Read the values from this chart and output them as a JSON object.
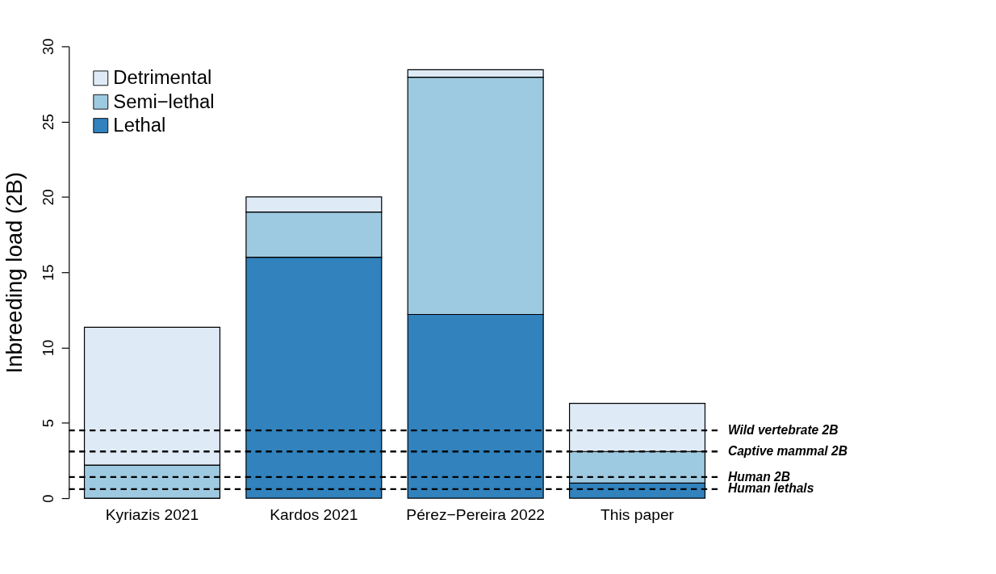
{
  "chart_data": {
    "type": "bar",
    "stacked": true,
    "ylabel": "Inbreeding load (2B)",
    "categories": [
      "Kyriazis 2021",
      "Kardos 2021",
      "Pérez−Pereira 2022",
      "This paper"
    ],
    "series": [
      {
        "name": "Lethal",
        "color": "#3182bd",
        "values": [
          0,
          16,
          12.2,
          1.0
        ]
      },
      {
        "name": "Semi−lethal",
        "color": "#9ecae1",
        "values": [
          2.2,
          3,
          15.75,
          2.1
        ]
      },
      {
        "name": "Detrimental",
        "color": "#deebf7",
        "values": [
          9.15,
          1,
          0.5,
          3.2
        ]
      }
    ],
    "ylim": [
      0,
      30
    ],
    "yticks": [
      0,
      5,
      10,
      15,
      20,
      25,
      30
    ],
    "grid": false,
    "legend": "top left",
    "ref_lines": [
      {
        "axis": "y",
        "value": 4.5,
        "label": "Wild vertebrate 2B",
        "line_style": "dashed"
      },
      {
        "axis": "y",
        "value": 3.1,
        "label": "Captive mammal 2B",
        "line_style": "dashed"
      },
      {
        "axis": "y",
        "value": 1.4,
        "label": "Human 2B",
        "line_style": "dashed"
      },
      {
        "axis": "y",
        "value": 0.6,
        "label": "Human lethals",
        "line_style": "dashed"
      }
    ]
  }
}
